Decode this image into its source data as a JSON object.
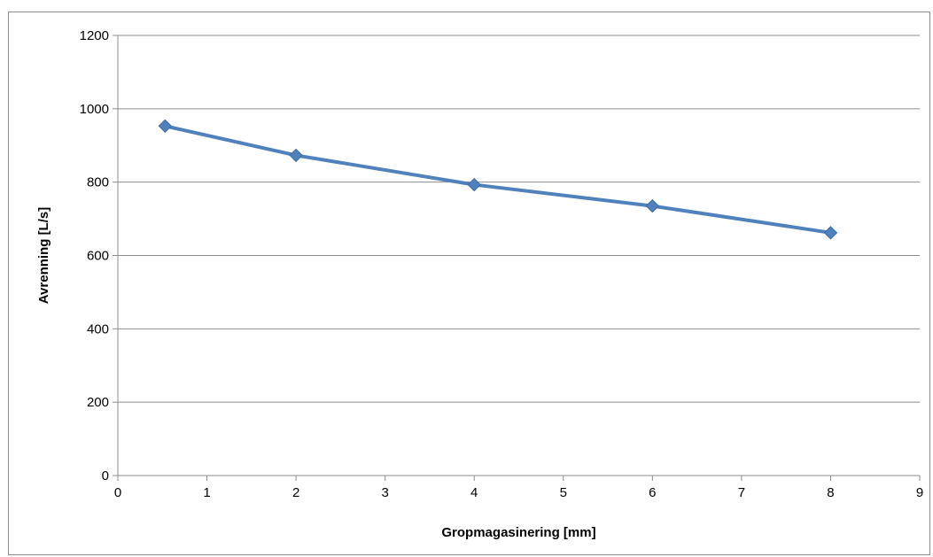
{
  "chart_data": {
    "type": "line",
    "title": "",
    "xlabel": "Gropmagasinering [mm]",
    "ylabel": "Avrenning [L/s]",
    "xlim": [
      0,
      9
    ],
    "ylim": [
      0,
      1200
    ],
    "xticks": [
      0,
      1,
      2,
      3,
      4,
      5,
      6,
      7,
      8,
      9
    ],
    "yticks": [
      0,
      200,
      400,
      600,
      800,
      1000,
      1200
    ],
    "grid": "horizontal",
    "legend": "none",
    "series": [
      {
        "color": "#4f81bd",
        "marker": "diamond",
        "x": [
          0.53,
          2,
          4,
          6,
          8
        ],
        "y": [
          953,
          873,
          793,
          735,
          662
        ]
      }
    ]
  }
}
